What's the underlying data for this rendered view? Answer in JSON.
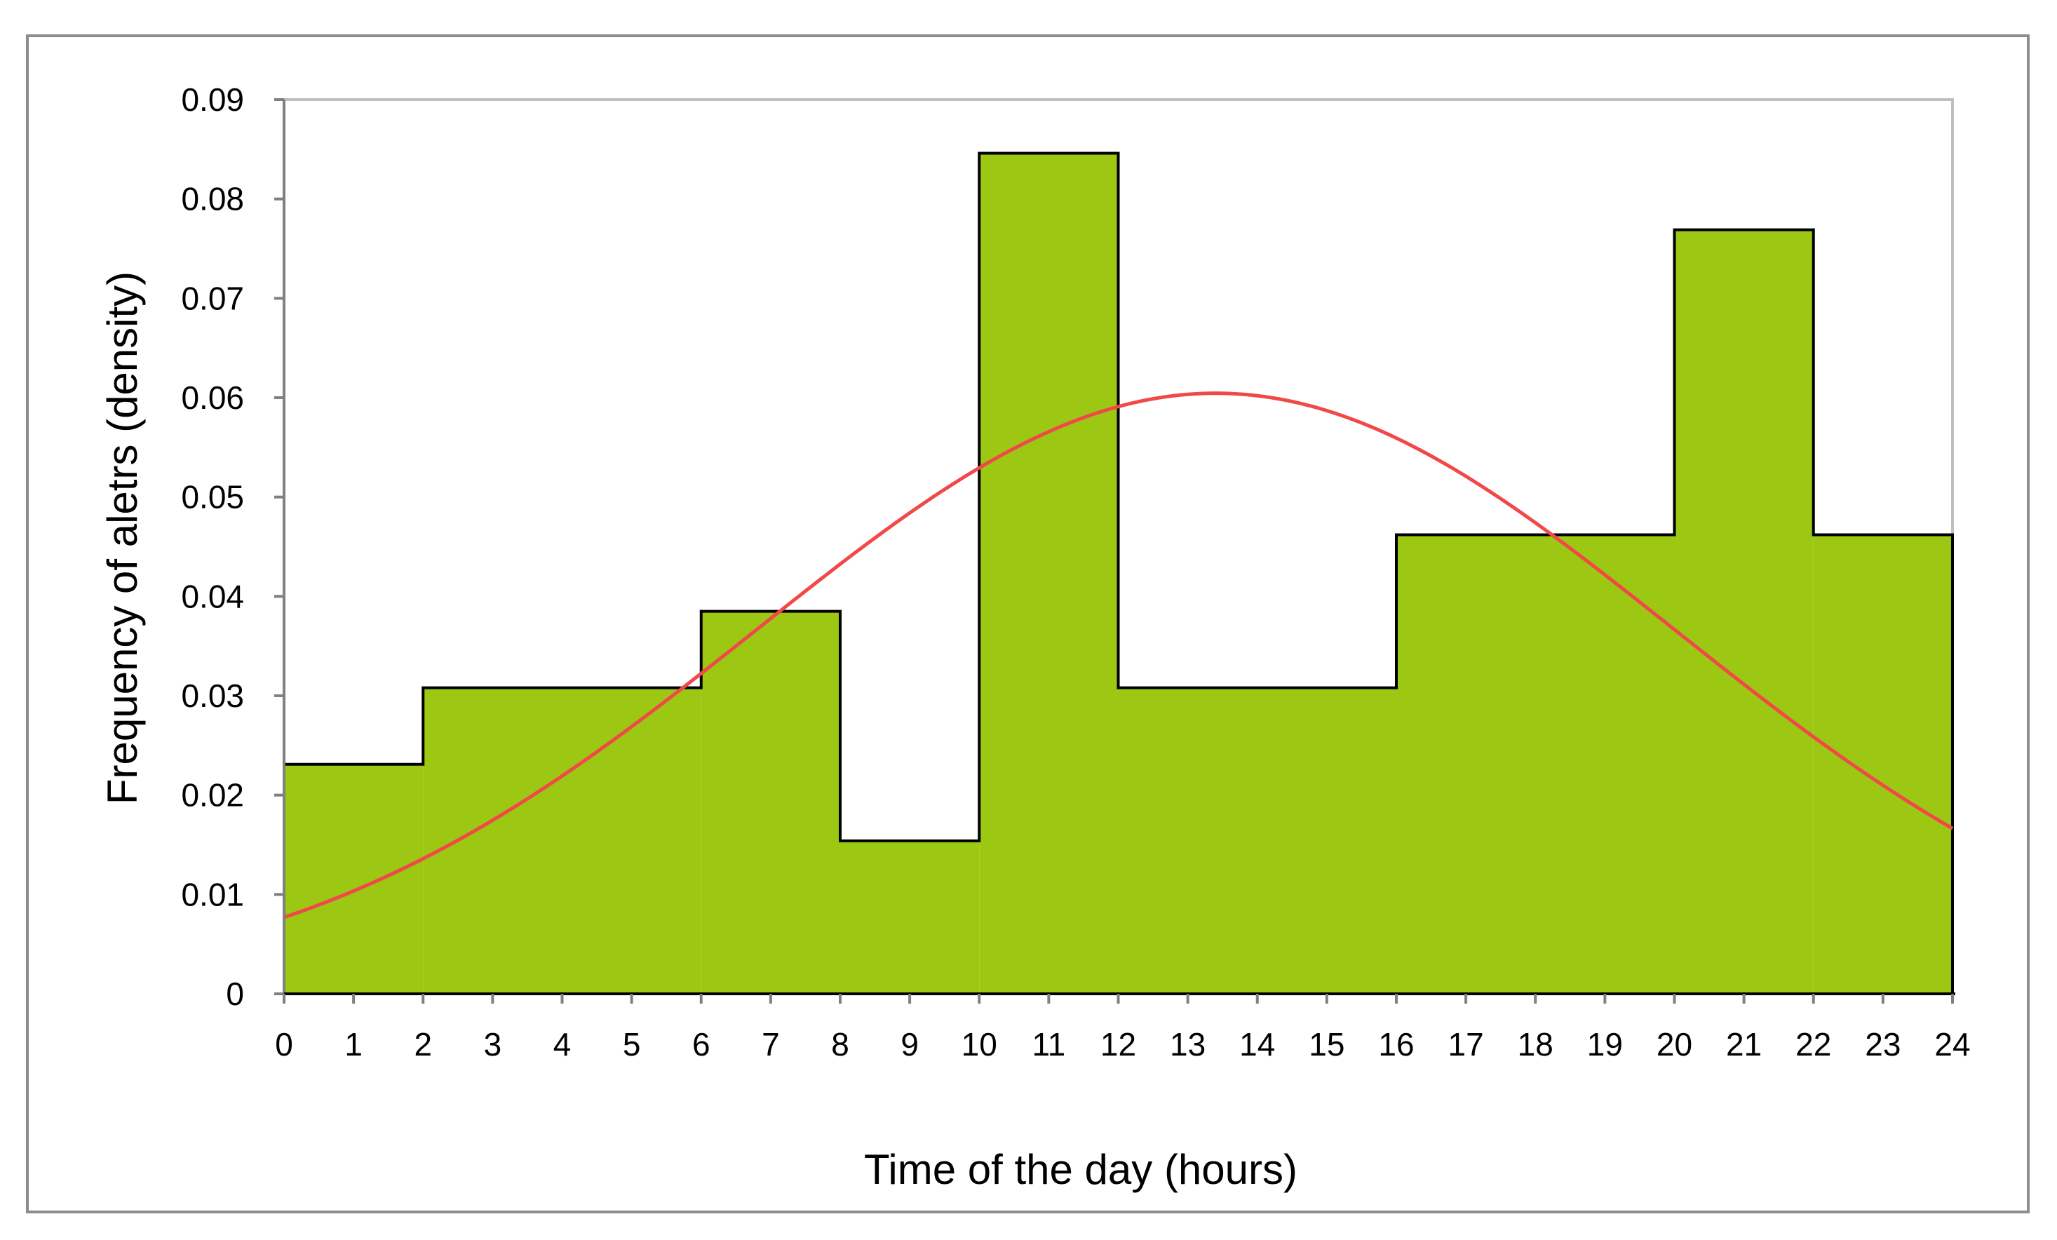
{
  "chart_data": {
    "type": "histogram",
    "title": "",
    "xlabel": "Time of the day (hours)",
    "ylabel": "Frequency of aletrs (density)",
    "xlim": [
      0,
      24
    ],
    "ylim": [
      0,
      0.09
    ],
    "x_ticks": [
      0,
      1,
      2,
      3,
      4,
      5,
      6,
      7,
      8,
      9,
      10,
      11,
      12,
      13,
      14,
      15,
      16,
      17,
      18,
      19,
      20,
      21,
      22,
      23,
      24
    ],
    "x_tick_labels": [
      "0",
      "1",
      "2",
      "3",
      "4",
      "5",
      "6",
      "7",
      "8",
      "9",
      "10",
      "11",
      "12",
      "13",
      "14",
      "15",
      "16",
      "17",
      "18",
      "19",
      "20",
      "21",
      "22",
      "23",
      "24"
    ],
    "y_ticks": [
      0,
      0.01,
      0.02,
      0.03,
      0.04,
      0.05,
      0.06,
      0.07,
      0.08,
      0.09
    ],
    "y_tick_labels": [
      "0",
      "0.01",
      "0.02",
      "0.03",
      "0.04",
      "0.05",
      "0.06",
      "0.07",
      "0.08",
      "0.09"
    ],
    "grid": false,
    "legend": "none",
    "bins": [
      {
        "start": 0,
        "end": 2,
        "density": 0.0231
      },
      {
        "start": 2,
        "end": 6,
        "density": 0.0308
      },
      {
        "start": 6,
        "end": 8,
        "density": 0.0385
      },
      {
        "start": 8,
        "end": 10,
        "density": 0.0154
      },
      {
        "start": 10,
        "end": 12,
        "density": 0.0846
      },
      {
        "start": 12,
        "end": 16,
        "density": 0.0308
      },
      {
        "start": 16,
        "end": 20,
        "density": 0.0462
      },
      {
        "start": 20,
        "end": 22,
        "density": 0.0769
      },
      {
        "start": 22,
        "end": 24,
        "density": 0.0462
      }
    ],
    "fitted_curve": {
      "type": "normal",
      "mean": 13.4,
      "sd": 6.6,
      "x": [
        0,
        2,
        4,
        6,
        8,
        10,
        12,
        13.4,
        14,
        16,
        18,
        20,
        22,
        24
      ],
      "y": [
        0.0077,
        0.0134,
        0.0214,
        0.0317,
        0.043,
        0.0532,
        0.0592,
        0.0605,
        0.0602,
        0.0558,
        0.0468,
        0.0367,
        0.0259,
        0.0166
      ]
    },
    "colors": {
      "bar_fill": "#9CC813",
      "bar_stroke": "#000000",
      "curve": "#F14848",
      "axis": "#808080",
      "frame": "#8C8C8C",
      "plot_border": "#BFBFBF"
    }
  }
}
